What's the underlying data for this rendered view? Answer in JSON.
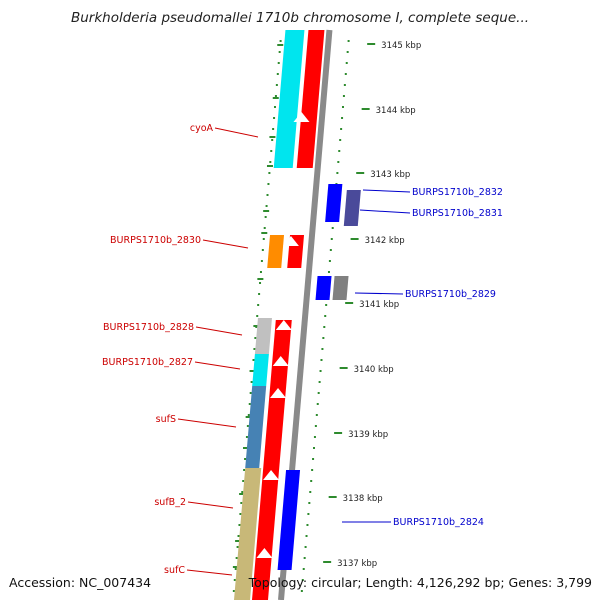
{
  "title": "Burkholderia pseudomallei 1710b chromosome I, complete seque...",
  "footer": {
    "accession": "Accession: NC_007434",
    "topology": "Topology: circular; Length: 4,126,292 bp; Genes: 3,799"
  },
  "colors": {
    "minus_label": "#cc0000",
    "plus_label": "#0000cc",
    "tick_dots": "#2e8b2e",
    "backbone": "#8a8a8a",
    "red": "#ff0000",
    "cyan": "#00e5ee",
    "blue": "#0000ff",
    "navy": "#4a4a9a",
    "orange": "#ff8c00",
    "grey": "#808080",
    "lightgrey": "#c0c0c0",
    "steel": "#4682b4",
    "khaki": "#c8b878"
  },
  "ticks": [
    "3145 kbp",
    "3144 kbp",
    "3143 kbp",
    "3142 kbp",
    "3141 kbp",
    "3140 kbp",
    "3139 kbp",
    "3138 kbp",
    "3137 kbp"
  ],
  "genes_minus": [
    "cyoA",
    "BURPS1710b_2830",
    "BURPS1710b_2828",
    "BURPS1710b_2827",
    "sufS",
    "sufB_2",
    "sufC"
  ],
  "genes_plus": [
    "BURPS1710b_2832",
    "BURPS1710b_2831",
    "BURPS1710b_2829",
    "BURPS1710b_2824"
  ]
}
